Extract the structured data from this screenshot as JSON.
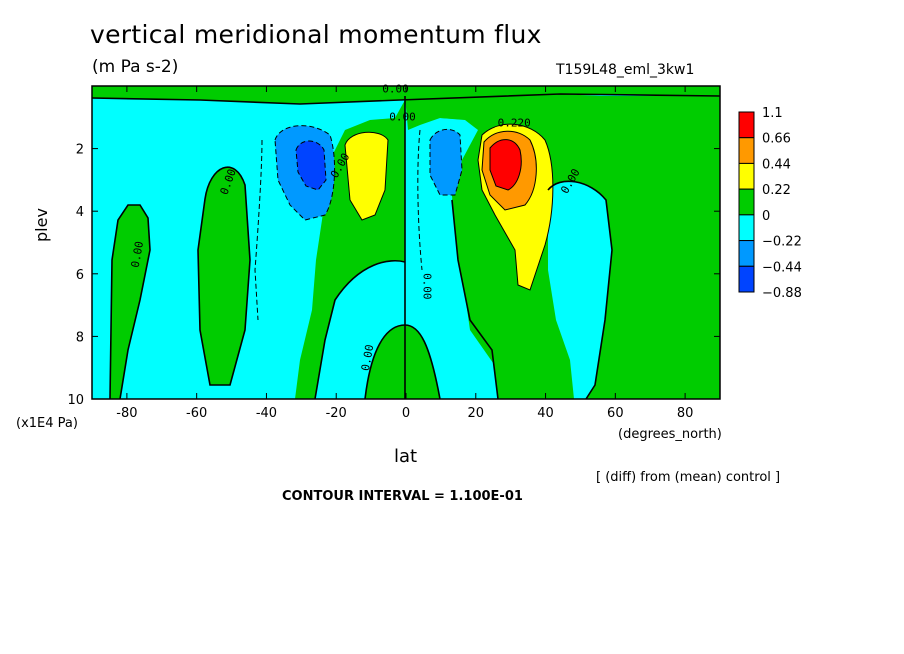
{
  "chart_data": {
    "type": "heatmap",
    "title": "vertical meridional momentum flux",
    "subtitle": "(m Pa s-2)",
    "run_name": "T159L48_eml_3kw1",
    "xlabel": "lat",
    "xunit": "(degrees_north)",
    "ylabel": "plev",
    "yunit": "(x1E4 Pa)",
    "xlim": [
      -90,
      90
    ],
    "ylim": [
      10,
      0
    ],
    "x_ticks": [
      -80,
      -60,
      -40,
      -20,
      0,
      20,
      40,
      60,
      80
    ],
    "y_ticks": [
      2,
      4,
      6,
      8,
      10
    ],
    "note": "[ (diff) from (mean) control ]",
    "contour_interval": "CONTOUR INTERVAL = 1.100E-01",
    "colorbar": {
      "labels": [
        "1.1",
        "0.66",
        "0.44",
        "0.22",
        "0",
        "−0.22",
        "−0.44",
        "−0.88"
      ],
      "colors": [
        "#ff0000",
        "#ff9900",
        "#ffff00",
        "#00cc00",
        "#00ffff",
        "#0099ff",
        "#0044ff"
      ]
    },
    "contour_labels": [
      "0.00",
      "0.00",
      "0.00",
      "0.00",
      "0.00",
      "0.00",
      "0.00",
      "0.00",
      "0.220"
    ],
    "features": [
      {
        "name": "max",
        "lat": 27,
        "plev": 2.5,
        "value": 1.1
      },
      {
        "name": "max",
        "lat": -10,
        "plev": 2.6,
        "value": 0.44
      },
      {
        "name": "min",
        "lat": -27,
        "plev": 2.6,
        "value": -0.88
      },
      {
        "name": "min",
        "lat": 10,
        "plev": 2.6,
        "value": -0.44
      }
    ]
  }
}
